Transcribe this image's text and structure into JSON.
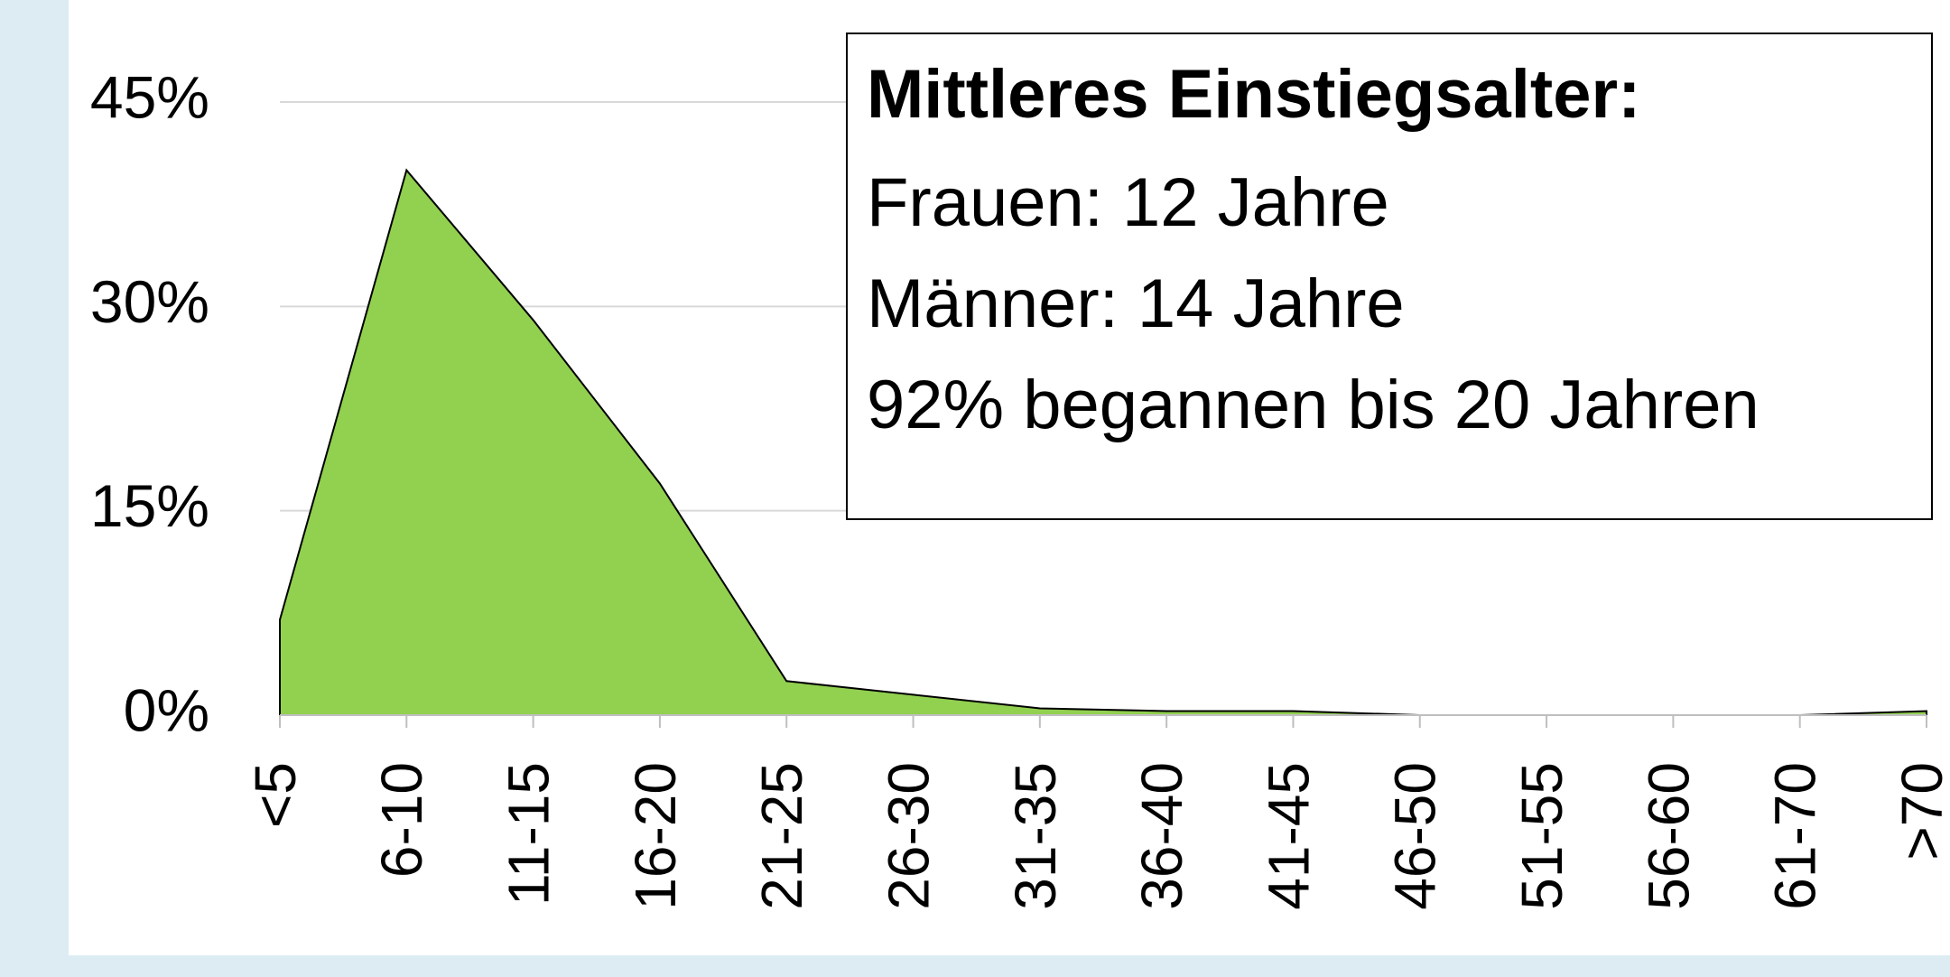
{
  "chart_data": {
    "type": "area",
    "categories": [
      "<5",
      "6-10",
      "11-15",
      "16-20",
      "21-25",
      "26-30",
      "31-35",
      "36-40",
      "41-45",
      "46-50",
      "51-55",
      "56-60",
      "61-70",
      ">70"
    ],
    "values": [
      7,
      40,
      29,
      17,
      2.5,
      1.5,
      0.5,
      0.3,
      0.3,
      0,
      0,
      0,
      0,
      0.3
    ],
    "color": "#92d050",
    "ylim": [
      0,
      45
    ],
    "yticks": [
      {
        "value": 0,
        "label": "0%"
      },
      {
        "value": 15,
        "label": "15%"
      },
      {
        "value": 30,
        "label": "30%"
      },
      {
        "value": 45,
        "label": "45%"
      }
    ],
    "grid": true,
    "annotation": {
      "title": "Mittleres Einstiegsalter:",
      "lines": [
        "Frauen: 12 Jahre",
        "Männer: 14 Jahre",
        "92% begannen bis 20 Jahren"
      ]
    }
  }
}
